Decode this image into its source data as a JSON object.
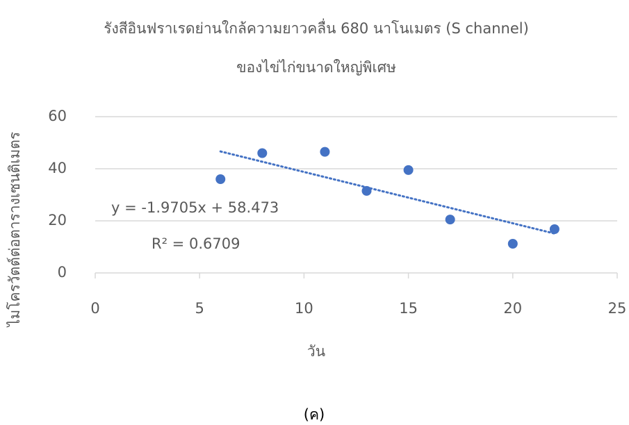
{
  "chart_data": {
    "type": "scatter",
    "title": "รังสีอินฟราเรดย่านใกล้ความยาวคลื่น 680 นาโนเมตร (S channel)",
    "subtitle": "ของไข่ไก่ขนาดใหญ่พิเศษ",
    "x_label": "วัน",
    "y_label": "ไมโครวัตต์ต่อตารางเซนติเมตร",
    "caption": "(ค)",
    "x": [
      6,
      8,
      11,
      13,
      15,
      17,
      20,
      22
    ],
    "values": [
      36,
      46,
      46.5,
      31.5,
      39.5,
      20.5,
      11.2,
      16.8
    ],
    "color": "#4472c4",
    "xlim": [
      0,
      25
    ],
    "xticks": [
      0,
      5,
      10,
      15,
      20,
      25
    ],
    "ylim": [
      0,
      60
    ],
    "yticks": [
      0,
      20,
      40,
      60
    ],
    "grid": true,
    "trendline": {
      "equation": "y = -1.9705x + 58.473",
      "r2_label": "R² = 0.6709",
      "slope": -1.9705,
      "intercept": 58.473
    }
  }
}
